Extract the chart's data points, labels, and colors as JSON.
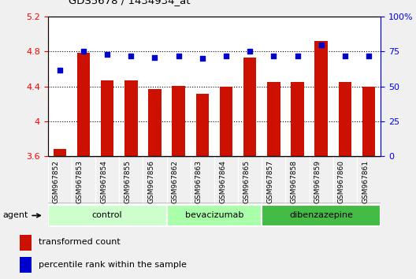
{
  "title": "GDS5678 / 1434934_at",
  "samples": [
    "GSM967852",
    "GSM967853",
    "GSM967854",
    "GSM967855",
    "GSM967856",
    "GSM967862",
    "GSM967863",
    "GSM967864",
    "GSM967865",
    "GSM967857",
    "GSM967858",
    "GSM967859",
    "GSM967860",
    "GSM967861"
  ],
  "bar_values": [
    3.68,
    4.79,
    4.47,
    4.47,
    4.37,
    4.41,
    4.32,
    4.4,
    4.73,
    4.45,
    4.45,
    4.92,
    4.45,
    4.4
  ],
  "dot_values": [
    62,
    75,
    73,
    72,
    71,
    72,
    70,
    72,
    75,
    72,
    72,
    80,
    72,
    72
  ],
  "groups": [
    {
      "label": "control",
      "start": 0,
      "end": 5,
      "color": "#ccffcc"
    },
    {
      "label": "bevacizumab",
      "start": 5,
      "end": 9,
      "color": "#aaffaa"
    },
    {
      "label": "dibenzazepine",
      "start": 9,
      "end": 14,
      "color": "#44bb44"
    }
  ],
  "bar_color": "#cc1100",
  "dot_color": "#0000cc",
  "ylim_left": [
    3.6,
    5.2
  ],
  "ylim_right": [
    0,
    100
  ],
  "yticks_left": [
    3.6,
    4.0,
    4.4,
    4.8,
    5.2
  ],
  "yticks_right": [
    0,
    25,
    50,
    75,
    100
  ],
  "ytick_labels_left": [
    "3.6",
    "4",
    "4.4",
    "4.8",
    "5.2"
  ],
  "ytick_labels_right": [
    "0",
    "25",
    "50",
    "75",
    "100%"
  ],
  "grid_values": [
    4.0,
    4.4,
    4.8
  ],
  "agent_label": "agent",
  "legend_bar_label": "transformed count",
  "legend_dot_label": "percentile rank within the sample",
  "background_color": "#f0f0f0",
  "plot_bg": "#ffffff",
  "label_bg": "#d4d4d4"
}
